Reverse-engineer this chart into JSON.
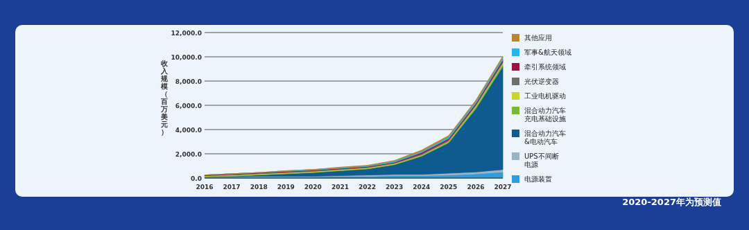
{
  "chart_data": {
    "type": "area",
    "stacked": true,
    "ylabel": "收入规模（百万美元）",
    "categories": [
      "2016",
      "2017",
      "2018",
      "2019",
      "2020",
      "2021",
      "2022",
      "2023",
      "2024",
      "2025",
      "2026",
      "2027"
    ],
    "ylim": [
      0,
      12000
    ],
    "yticks": [
      {
        "value": 0,
        "label": "0.0"
      },
      {
        "value": 2000,
        "label": "2,000.0"
      },
      {
        "value": 4000,
        "label": "4,000.0"
      },
      {
        "value": 6000,
        "label": "6,000.0"
      },
      {
        "value": 8000,
        "label": "8,000.0"
      },
      {
        "value": 10000,
        "label": "10,000.0"
      },
      {
        "value": 12000,
        "label": "12,000.0"
      }
    ],
    "grid": "y",
    "legend": "right",
    "series": [
      {
        "name": "电源装置",
        "color": "#2e9de0",
        "values": [
          50,
          50,
          100,
          100,
          100,
          150,
          150,
          200,
          200,
          250,
          350,
          500
        ]
      },
      {
        "name": "UPS不间断电源",
        "color": "#9db3c4",
        "values": [
          50,
          50,
          50,
          50,
          50,
          50,
          100,
          100,
          100,
          150,
          150,
          200
        ]
      },
      {
        "name": "混合动力汽车&电动汽车",
        "color": "#0f5a8e",
        "values": [
          0,
          50,
          100,
          200,
          300,
          400,
          500,
          800,
          1500,
          2500,
          5200,
          8500
        ]
      },
      {
        "name": "混合动力汽车充电基础设施",
        "color": "#7ab83a",
        "values": [
          50,
          50,
          50,
          50,
          50,
          50,
          50,
          50,
          50,
          100,
          150,
          200
        ]
      },
      {
        "name": "工业电机驱动",
        "color": "#c8d62a",
        "values": [
          50,
          50,
          50,
          50,
          50,
          50,
          50,
          50,
          50,
          50,
          100,
          100
        ]
      },
      {
        "name": "光伏逆变器",
        "color": "#6e6e6e",
        "values": [
          0,
          50,
          50,
          50,
          50,
          50,
          50,
          50,
          100,
          100,
          100,
          100
        ]
      },
      {
        "name": "牵引系统领域",
        "color": "#a0103a",
        "values": [
          50,
          50,
          50,
          50,
          50,
          50,
          50,
          50,
          100,
          100,
          100,
          150
        ]
      },
      {
        "name": "军事&航天领域",
        "color": "#29b6e8",
        "values": [
          0,
          0,
          0,
          50,
          50,
          50,
          50,
          100,
          100,
          150,
          150,
          200
        ]
      },
      {
        "name": "其他应用",
        "color": "#b8862e",
        "values": [
          0,
          0,
          0,
          0,
          0,
          50,
          50,
          50,
          100,
          100,
          100,
          100
        ]
      }
    ],
    "annotations": [
      "2020-2027年为预测值"
    ]
  }
}
